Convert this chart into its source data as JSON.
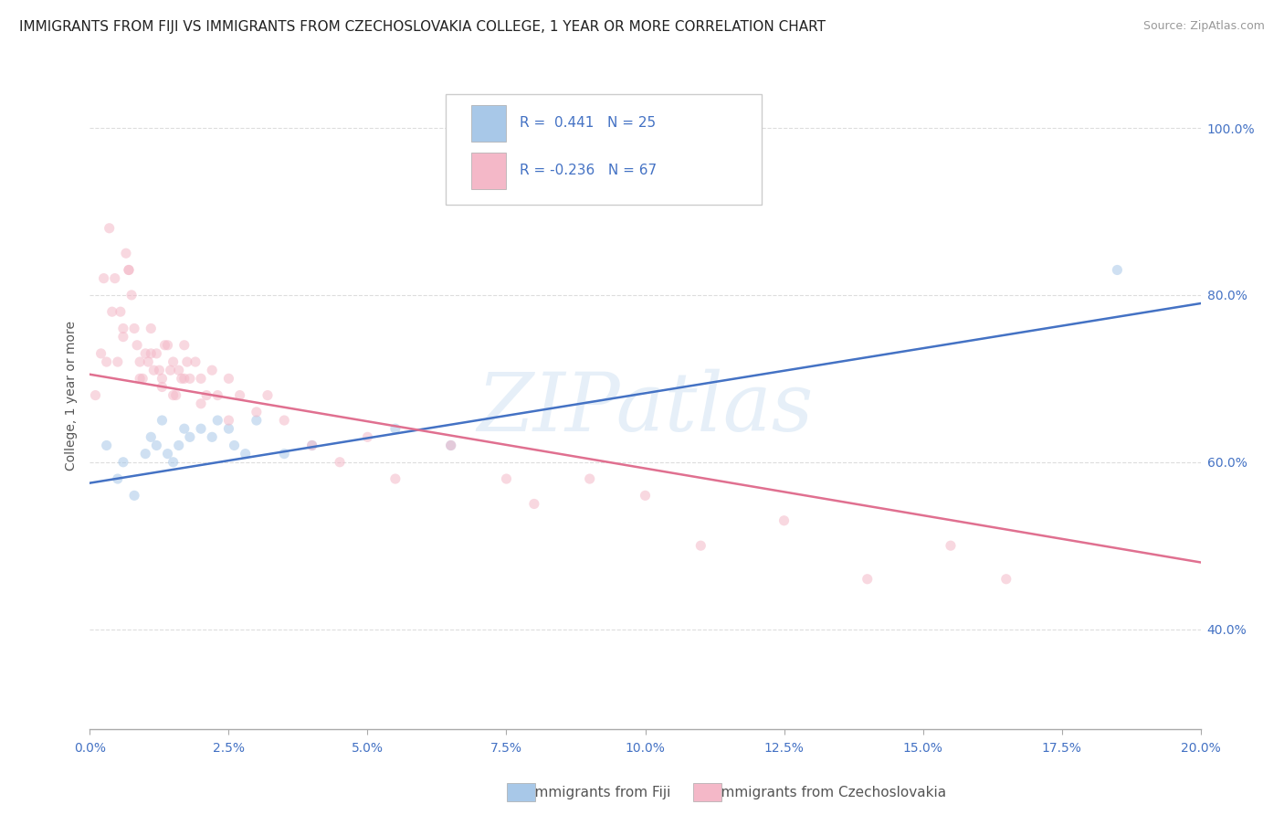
{
  "title": "IMMIGRANTS FROM FIJI VS IMMIGRANTS FROM CZECHOSLOVAKIA COLLEGE, 1 YEAR OR MORE CORRELATION CHART",
  "source": "Source: ZipAtlas.com",
  "ylabel": "College, 1 year or more",
  "xlim": [
    0.0,
    20.0
  ],
  "ylim": [
    28.0,
    108.0
  ],
  "xticks": [
    0.0,
    2.5,
    5.0,
    7.5,
    10.0,
    12.5,
    15.0,
    17.5,
    20.0
  ],
  "ytick_labels": [
    "40.0%",
    "60.0%",
    "80.0%",
    "100.0%"
  ],
  "ytick_values": [
    40.0,
    60.0,
    80.0,
    100.0
  ],
  "fiji_color": "#a8c8e8",
  "czech_color": "#f4b8c8",
  "fiji_line_color": "#4472c4",
  "czech_line_color": "#e07090",
  "legend_fiji_r": 0.441,
  "legend_fiji_n": 25,
  "legend_czech_r": -0.236,
  "legend_czech_n": 67,
  "fiji_x": [
    0.3,
    0.5,
    0.6,
    0.8,
    1.0,
    1.1,
    1.2,
    1.3,
    1.4,
    1.5,
    1.6,
    1.7,
    1.8,
    2.0,
    2.2,
    2.3,
    2.5,
    2.6,
    2.8,
    3.0,
    3.5,
    4.0,
    5.5,
    6.5,
    18.5
  ],
  "fiji_y": [
    62,
    58,
    60,
    56,
    61,
    63,
    62,
    65,
    61,
    60,
    62,
    64,
    63,
    64,
    63,
    65,
    64,
    62,
    61,
    65,
    61,
    62,
    64,
    62,
    83
  ],
  "czech_x": [
    0.1,
    0.2,
    0.3,
    0.35,
    0.4,
    0.45,
    0.5,
    0.55,
    0.6,
    0.65,
    0.7,
    0.75,
    0.8,
    0.85,
    0.9,
    0.95,
    1.0,
    1.05,
    1.1,
    1.15,
    1.2,
    1.25,
    1.3,
    1.35,
    1.4,
    1.45,
    1.5,
    1.55,
    1.6,
    1.65,
    1.7,
    1.75,
    1.8,
    1.9,
    2.0,
    2.1,
    2.2,
    2.3,
    2.5,
    2.7,
    3.0,
    3.2,
    3.5,
    4.0,
    4.5,
    5.0,
    5.5,
    6.5,
    7.5,
    8.0,
    9.0,
    10.0,
    11.0,
    12.5,
    14.0,
    15.5,
    16.5,
    0.25,
    0.6,
    0.7,
    0.9,
    1.1,
    1.3,
    1.5,
    1.7,
    2.0,
    2.5
  ],
  "czech_y": [
    68,
    73,
    72,
    88,
    78,
    82,
    72,
    78,
    75,
    85,
    83,
    80,
    76,
    74,
    72,
    70,
    73,
    72,
    76,
    71,
    73,
    71,
    70,
    74,
    74,
    71,
    72,
    68,
    71,
    70,
    74,
    72,
    70,
    72,
    70,
    68,
    71,
    68,
    70,
    68,
    66,
    68,
    65,
    62,
    60,
    63,
    58,
    62,
    58,
    55,
    58,
    56,
    50,
    53,
    46,
    50,
    46,
    82,
    76,
    83,
    70,
    73,
    69,
    68,
    70,
    67,
    65
  ],
  "fiji_trend_x": [
    0.0,
    20.0
  ],
  "fiji_trend_y": [
    57.5,
    79.0
  ],
  "czech_trend_x": [
    0.0,
    20.0
  ],
  "czech_trend_y": [
    70.5,
    48.0
  ],
  "watermark_text": "ZIPatlas",
  "background_color": "#ffffff",
  "grid_color": "#dddddd",
  "title_fontsize": 11,
  "source_fontsize": 9,
  "axis_label_fontsize": 10,
  "tick_fontsize": 10,
  "legend_fontsize": 11,
  "marker_size": 65,
  "marker_alpha": 0.55,
  "line_width": 1.8
}
